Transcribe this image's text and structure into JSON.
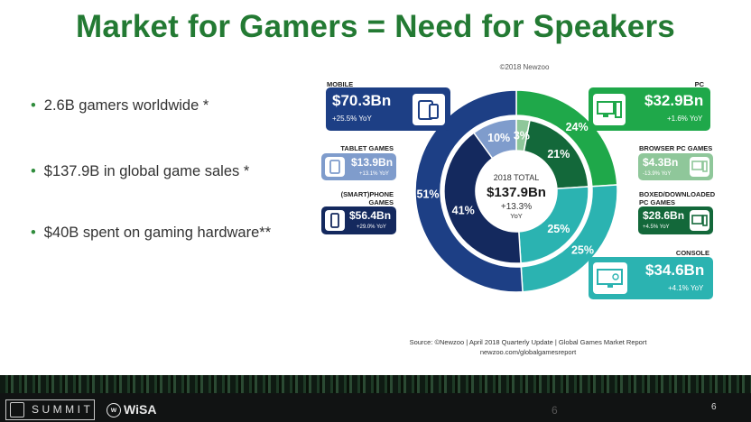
{
  "title": "Market for Gamers = Need for Speakers",
  "bullets": [
    "2.6B gamers worldwide *",
    "$137.9B in global game sales *",
    "$40B spent on gaming hardware**"
  ],
  "chart_data": {
    "type": "pie",
    "copyright": "©2018 Newzoo",
    "center": {
      "line1": "2018 TOTAL",
      "value": "$137.9Bn",
      "growth": "+13.3%",
      "unit": "YoY"
    },
    "outer": [
      {
        "name": "PC",
        "percent": 24,
        "label": "24%",
        "color": "#1fa84a"
      },
      {
        "name": "Console",
        "percent": 25,
        "label": "25%",
        "color": "#2bb3b1"
      },
      {
        "name": "Mobile",
        "percent": 51,
        "label": "51%",
        "color": "#1d3f85"
      }
    ],
    "inner": [
      {
        "name": "Browser PC Games",
        "percent": 3,
        "label": "3%",
        "color": "#8fc79a"
      },
      {
        "name": "Boxed/Downloaded PC Games",
        "percent": 21,
        "label": "21%",
        "color": "#13683a"
      },
      {
        "name": "Console",
        "percent": 25,
        "label": "25%",
        "color": "#2bb3b1"
      },
      {
        "name": "(Smart)phone Games",
        "percent": 41,
        "label": "41%",
        "color": "#14295e"
      },
      {
        "name": "Tablet Games",
        "percent": 10,
        "label": "10%",
        "color": "#7f9ccc"
      }
    ],
    "callouts": {
      "mobile": {
        "caption": "MOBILE",
        "value": "$70.3Bn",
        "yoy": "+25.5% YoY",
        "color": "#1d3f85"
      },
      "tablet": {
        "caption": "TABLET GAMES",
        "value": "$13.9Bn",
        "yoy": "+13.1% YoY",
        "color": "#7f9ccc"
      },
      "phone": {
        "caption_line1": "(SMART)PHONE",
        "caption_line2": "GAMES",
        "value": "$56.4Bn",
        "yoy": "+29.0% YoY",
        "color": "#14295e"
      },
      "pc": {
        "caption": "PC",
        "value": "$32.9Bn",
        "yoy": "+1.6% YoY",
        "color": "#1fa84a"
      },
      "browser": {
        "caption": "BROWSER PC GAMES",
        "value": "$4.3Bn",
        "yoy": "-13.9% YoY",
        "color": "#8fc79a"
      },
      "boxed": {
        "caption_line1": "BOXED/DOWNLOADED",
        "caption_line2": "PC GAMES",
        "value": "$28.6Bn",
        "yoy": "+4.5% YoY",
        "color": "#13683a"
      },
      "console": {
        "caption": "CONSOLE",
        "value": "$34.6Bn",
        "yoy": "+4.1% YoY",
        "color": "#2bb3b1"
      }
    },
    "source_line1": "Source: ©Newzoo | April 2018 Quarterly Update | Global Games Market Report",
    "source_line2": "newzoo.com/globalgamesreport"
  },
  "footer": {
    "brand_summit": "SUMMIT",
    "brand_wisa": "WiSA",
    "page_center": "6",
    "page_right": "6"
  }
}
